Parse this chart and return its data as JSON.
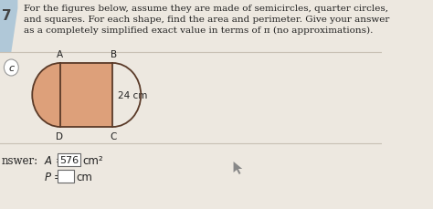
{
  "bg_color": "#ede8e0",
  "question_number": "7",
  "question_text_line1": "For the figures below, assume they are made of semicircles, quarter circles,",
  "question_text_line2": "and squares. For each shape, find the area and perimeter. Give your answer",
  "question_text_line3": "as a completely simplified exact value in terms of π (no approximations).",
  "part_label": "c",
  "dim_label": "24 cm",
  "answer_label": "nswer:",
  "answer_A_value": "576",
  "answer_A_unit": "cm²",
  "answer_P_unit": "cm",
  "shape_fill_color": "#dda07a",
  "shape_stroke_color": "#5a3a28",
  "text_color": "#222222",
  "tab_color": "#b0c8d8",
  "sep_color": "#c8c0b4",
  "font_size_q": 7.5,
  "font_size_label": 7.5,
  "font_size_ans": 8.5
}
